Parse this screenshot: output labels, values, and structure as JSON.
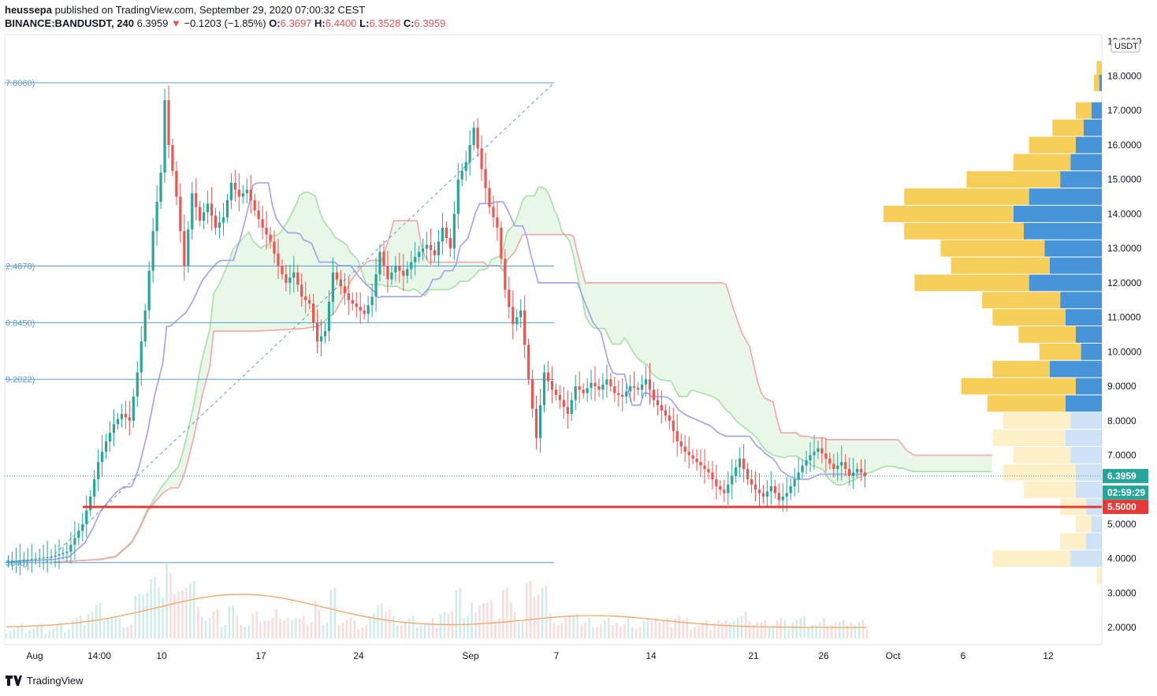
{
  "header": {
    "author": "heussepa",
    "published_text": " published on TradingView.com, September 29, 2020 07:00:32 CEST",
    "symbol": "BINANCE:BANDUSDT, 240",
    "price": "6.3959",
    "change": "−0.1203 (−1.85%)",
    "o_label": "O:",
    "o_value": "6.3697",
    "h_label": "H:",
    "h_value": "6.4400",
    "l_label": "L:",
    "l_value": "6.3528",
    "c_label": "C:",
    "c_value": "6.3959"
  },
  "footer": {
    "brand": "TradingView"
  },
  "colors": {
    "up": "#26a69a",
    "down": "#ef5350",
    "fib": "#5b9bd5",
    "support": "#e53935",
    "volume_profile_up": "#f7c948",
    "volume_profile_down": "#3d8fd6",
    "tenkan": "#9f9ff5",
    "kijun_cloud_green": "#a5e0a5",
    "kijun_cloud_red": "#f5a5a5",
    "volume_ma": "#f4a460"
  },
  "chart_data": {
    "type": "candlestick",
    "currency": "USDT",
    "y_axis": {
      "range": [
        1.5,
        19.2
      ],
      "ticks": [
        "2.0000",
        "3.0000",
        "4.0000",
        "5.0000",
        "6.0000",
        "7.0000",
        "8.0000",
        "9.0000",
        "10.0000",
        "11.0000",
        "12.0000",
        "13.0000",
        "14.0000",
        "15.0000",
        "16.0000",
        "17.0000",
        "18.0000",
        "19.0000"
      ]
    },
    "x_axis": {
      "ticks": [
        "Aug",
        "14:00",
        "10",
        "17",
        "24",
        "Sep",
        "7",
        "14",
        "21",
        "26",
        "Oct",
        "6",
        "12"
      ]
    },
    "price_badges": [
      {
        "label": "6.3959",
        "value": 6.3959,
        "kind": "last"
      },
      {
        "label": "02:59:29",
        "value": 5.9,
        "kind": "countdown"
      },
      {
        "label": "5.5000",
        "value": 5.5,
        "kind": "support"
      }
    ],
    "fib_levels": [
      {
        "label": "7.8060)",
        "value": 17.806
      },
      {
        "label": "2.4878)",
        "value": 12.4878
      },
      {
        "label": "0.8450)",
        "value": 10.845
      },
      {
        "label": "9.2022)",
        "value": 9.2022
      },
      {
        "label": "3840)",
        "value": 3.884
      }
    ],
    "support_level": 5.5,
    "trend_line": {
      "from": 3.884,
      "to": 17.806
    },
    "price_path": [
      [
        0,
        3.9
      ],
      [
        8,
        4.0
      ],
      [
        12,
        4.05
      ],
      [
        16,
        4.2
      ],
      [
        18,
        4.6
      ],
      [
        20,
        5.0
      ],
      [
        22,
        5.8
      ],
      [
        24,
        6.8
      ],
      [
        26,
        7.4
      ],
      [
        28,
        7.9
      ],
      [
        30,
        8.2
      ],
      [
        32,
        8.0
      ],
      [
        34,
        9.4
      ],
      [
        36,
        11.2
      ],
      [
        38,
        13.5
      ],
      [
        40,
        15.2
      ],
      [
        41,
        17.3
      ],
      [
        42,
        16.0
      ],
      [
        44,
        14.5
      ],
      [
        46,
        12.5
      ],
      [
        48,
        14.6
      ],
      [
        50,
        13.8
      ],
      [
        52,
        14.3
      ],
      [
        54,
        13.6
      ],
      [
        56,
        13.9
      ],
      [
        58,
        14.9
      ],
      [
        60,
        14.5
      ],
      [
        62,
        14.7
      ],
      [
        64,
        14.1
      ],
      [
        66,
        13.6
      ],
      [
        68,
        13.2
      ],
      [
        70,
        12.5
      ],
      [
        72,
        12.0
      ],
      [
        74,
        12.3
      ],
      [
        76,
        11.6
      ],
      [
        78,
        11.4
      ],
      [
        80,
        10.3
      ],
      [
        82,
        10.6
      ],
      [
        84,
        12.3
      ],
      [
        86,
        11.9
      ],
      [
        88,
        11.5
      ],
      [
        90,
        11.3
      ],
      [
        92,
        11.1
      ],
      [
        94,
        11.6
      ],
      [
        96,
        12.9
      ],
      [
        98,
        12.1
      ],
      [
        100,
        12.5
      ],
      [
        102,
        12.2
      ],
      [
        104,
        12.6
      ],
      [
        106,
        12.9
      ],
      [
        108,
        13.1
      ],
      [
        110,
        12.8
      ],
      [
        112,
        13.6
      ],
      [
        114,
        13.0
      ],
      [
        116,
        15.0
      ],
      [
        118,
        15.5
      ],
      [
        120,
        16.5
      ],
      [
        122,
        15.3
      ],
      [
        124,
        14.2
      ],
      [
        126,
        13.6
      ],
      [
        128,
        11.8
      ],
      [
        130,
        10.8
      ],
      [
        132,
        11.2
      ],
      [
        134,
        9.2
      ],
      [
        136,
        7.5
      ],
      [
        138,
        9.4
      ],
      [
        140,
        8.9
      ],
      [
        142,
        8.6
      ],
      [
        144,
        8.2
      ],
      [
        146,
        9.0
      ],
      [
        148,
        8.8
      ],
      [
        150,
        9.1
      ],
      [
        152,
        8.9
      ],
      [
        154,
        9.2
      ],
      [
        156,
        8.8
      ],
      [
        158,
        8.7
      ],
      [
        160,
        9.0
      ],
      [
        162,
        8.9
      ],
      [
        164,
        9.2
      ],
      [
        166,
        8.6
      ],
      [
        168,
        8.3
      ],
      [
        170,
        8.0
      ],
      [
        172,
        7.4
      ],
      [
        174,
        7.1
      ],
      [
        176,
        6.9
      ],
      [
        178,
        6.7
      ],
      [
        180,
        6.5
      ],
      [
        182,
        6.1
      ],
      [
        184,
        5.9
      ],
      [
        186,
        6.4
      ],
      [
        188,
        6.9
      ],
      [
        190,
        6.3
      ],
      [
        192,
        6.0
      ],
      [
        194,
        5.8
      ],
      [
        196,
        6.1
      ],
      [
        198,
        5.7
      ],
      [
        200,
        5.9
      ],
      [
        202,
        6.3
      ],
      [
        204,
        6.7
      ],
      [
        206,
        7.0
      ],
      [
        208,
        7.2
      ],
      [
        210,
        6.9
      ],
      [
        212,
        6.6
      ],
      [
        214,
        6.8
      ],
      [
        216,
        6.4
      ],
      [
        218,
        6.6
      ],
      [
        220,
        6.3959
      ]
    ],
    "volume_profile": [
      {
        "price": 18.2,
        "up": 0.02,
        "down": 0.0
      },
      {
        "price": 17.8,
        "up": 0.02,
        "down": 0.01
      },
      {
        "price": 17.0,
        "up": 0.06,
        "down": 0.04
      },
      {
        "price": 16.5,
        "up": 0.12,
        "down": 0.07
      },
      {
        "price": 16.0,
        "up": 0.18,
        "down": 0.1
      },
      {
        "price": 15.5,
        "up": 0.22,
        "down": 0.12
      },
      {
        "price": 15.0,
        "up": 0.36,
        "down": 0.16
      },
      {
        "price": 14.5,
        "up": 0.48,
        "down": 0.28
      },
      {
        "price": 14.0,
        "up": 0.5,
        "down": 0.34
      },
      {
        "price": 13.5,
        "up": 0.46,
        "down": 0.3
      },
      {
        "price": 13.0,
        "up": 0.4,
        "down": 0.22
      },
      {
        "price": 12.5,
        "up": 0.38,
        "down": 0.2
      },
      {
        "price": 12.0,
        "up": 0.44,
        "down": 0.28
      },
      {
        "price": 11.5,
        "up": 0.3,
        "down": 0.16
      },
      {
        "price": 11.0,
        "up": 0.28,
        "down": 0.14
      },
      {
        "price": 10.5,
        "up": 0.22,
        "down": 0.1
      },
      {
        "price": 10.0,
        "up": 0.16,
        "down": 0.08
      },
      {
        "price": 9.5,
        "up": 0.22,
        "down": 0.2
      },
      {
        "price": 9.0,
        "up": 0.44,
        "down": 0.1
      },
      {
        "price": 8.5,
        "up": 0.3,
        "down": 0.14
      },
      {
        "price": 8.0,
        "up": 0.26,
        "down": 0.12
      },
      {
        "price": 7.5,
        "up": 0.28,
        "down": 0.14
      },
      {
        "price": 7.0,
        "up": 0.22,
        "down": 0.12
      },
      {
        "price": 6.5,
        "up": 0.28,
        "down": 0.1
      },
      {
        "price": 6.0,
        "up": 0.2,
        "down": 0.1
      },
      {
        "price": 5.5,
        "up": 0.1,
        "down": 0.06
      },
      {
        "price": 5.0,
        "up": 0.06,
        "down": 0.04
      },
      {
        "price": 4.5,
        "up": 0.1,
        "down": 0.06
      },
      {
        "price": 4.0,
        "up": 0.3,
        "down": 0.12
      },
      {
        "price": 3.5,
        "up": 0.02,
        "down": 0.0
      }
    ]
  }
}
